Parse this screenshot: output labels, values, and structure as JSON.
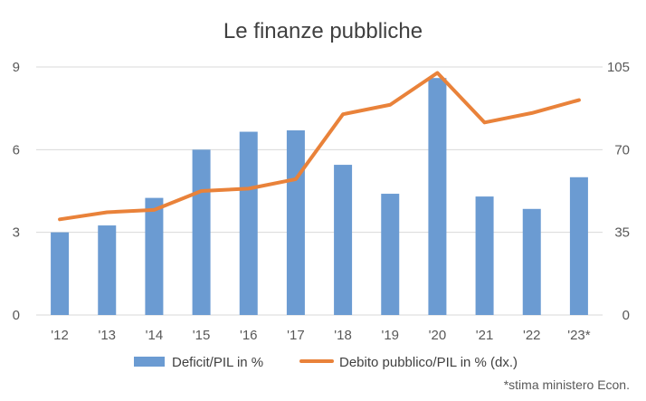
{
  "chart_data": {
    "type": "bar+line",
    "title": "Le finanze pubbliche",
    "categories": [
      "'12",
      "'13",
      "'14",
      "'15",
      "'16",
      "'17",
      "'18",
      "'19",
      "'20",
      "'21",
      "'22",
      "'23*"
    ],
    "series": [
      {
        "name": "Deficit/PIL in %",
        "type": "bar",
        "axis": "left",
        "color": "#6b9bd2",
        "values": [
          3.0,
          3.25,
          4.25,
          6.0,
          6.65,
          6.7,
          5.45,
          4.4,
          8.6,
          4.3,
          3.85,
          5.0
        ]
      },
      {
        "name": "Debito pubblico/PIL in % (dx.)",
        "type": "line",
        "axis": "right",
        "color": "#e9823a",
        "values": [
          40.5,
          43.5,
          44.5,
          52.5,
          53.5,
          57.5,
          85.0,
          89.0,
          102.5,
          81.5,
          85.5,
          91.0
        ]
      }
    ],
    "y_left": {
      "min": 0,
      "max": 9,
      "ticks": [
        0,
        3,
        6,
        9
      ]
    },
    "y_right": {
      "min": 0,
      "max": 105,
      "ticks": [
        0,
        35,
        70,
        105
      ]
    },
    "grid": true,
    "legend": "bottom",
    "note": "*stima ministero Econ."
  }
}
